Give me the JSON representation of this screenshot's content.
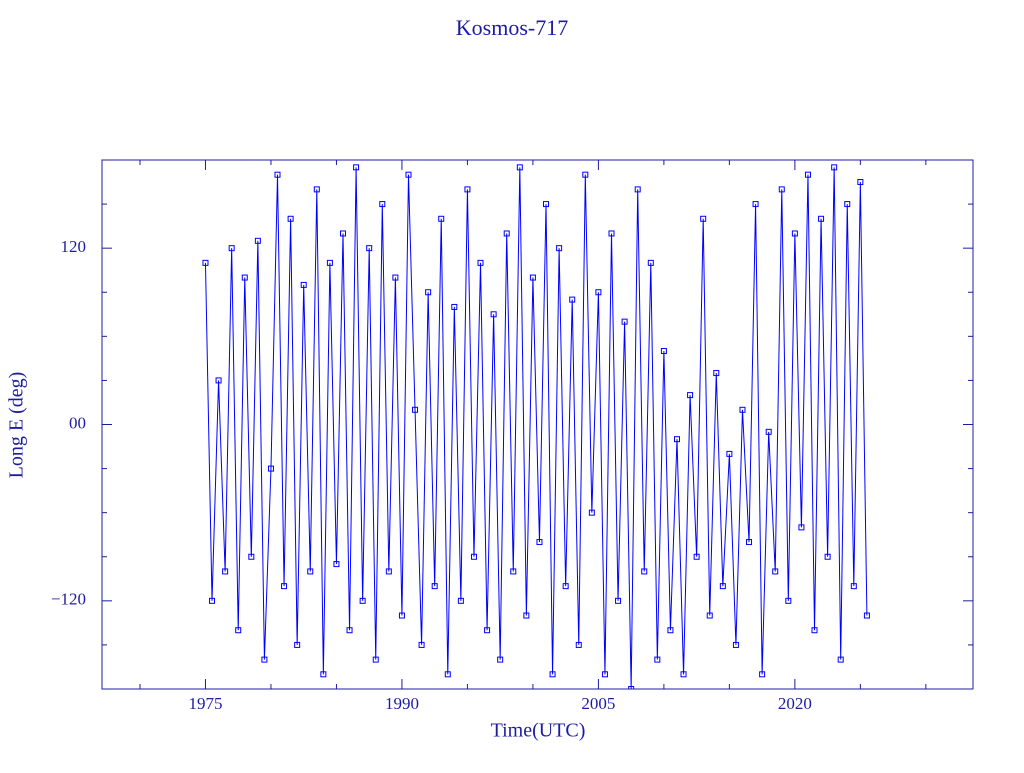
{
  "chart_data": {
    "type": "line",
    "title": "Kosmos-717",
    "x_label": "Time(UTC)",
    "y_label": "Long E (deg)",
    "xlim": [
      1967.1,
      2033.6
    ],
    "ylim": [
      -180,
      180
    ],
    "xticks": [
      1975,
      1990,
      2005,
      2020
    ],
    "xticks_minor": [
      1970,
      1980,
      1985,
      1995,
      2000,
      2010,
      2015,
      2025,
      2030
    ],
    "yticks": [
      {
        "value": -120,
        "label": "−120"
      },
      {
        "value": 0,
        "label": "00"
      },
      120
    ],
    "yticks_minor": [
      -150,
      -90,
      -60,
      -30,
      30,
      60,
      90,
      150
    ],
    "axis_color": "#1c1ca0",
    "markers": true,
    "series": [
      {
        "color": "#0000ff",
        "x": [
          1975.0,
          1975.5,
          1976.0,
          1976.5,
          1977.0,
          1977.5,
          1978.0,
          1978.5,
          1979.0,
          1979.5,
          1980.0,
          1980.5,
          1981.0,
          1981.5,
          1982.0,
          1982.5,
          1983.0,
          1983.5,
          1984.0,
          1984.5,
          1985.0,
          1985.5,
          1986.0,
          1986.5,
          1987.0,
          1987.5,
          1988.0,
          1988.5,
          1989.0,
          1989.5,
          1990.0,
          1990.5,
          1991.0,
          1991.5,
          1992.0,
          1992.5,
          1993.0,
          1993.5,
          1994.0,
          1994.5,
          1995.0,
          1995.5,
          1996.0,
          1996.5,
          1997.0,
          1997.5,
          1998.0,
          1998.5,
          1999.0,
          1999.5,
          2000.0,
          2000.5,
          2001.0,
          2001.5,
          2002.0,
          2002.5,
          2003.0,
          2003.5,
          2004.0,
          2004.5,
          2005.0,
          2005.5,
          2006.0,
          2006.5,
          2007.0,
          2007.5,
          2008.0,
          2008.5,
          2009.0,
          2009.5,
          2010.0,
          2010.5,
          2011.0,
          2011.5,
          2012.0,
          2012.5,
          2013.0,
          2013.5,
          2014.0,
          2014.5,
          2015.0,
          2015.5,
          2016.0,
          2016.5,
          2017.0,
          2017.5,
          2018.0,
          2018.5,
          2019.0,
          2019.5,
          2020.0,
          2020.5,
          2021.0,
          2021.5,
          2022.0,
          2022.5,
          2023.0,
          2023.5,
          2024.0,
          2024.5,
          2025.0,
          2025.5
        ],
        "values": [
          110,
          -120,
          30,
          -100,
          120,
          -140,
          100,
          -90,
          125,
          -160,
          -30,
          170,
          -110,
          140,
          -150,
          95,
          -100,
          160,
          -170,
          110,
          -95,
          130,
          -140,
          175,
          -120,
          120,
          -160,
          150,
          -100,
          100,
          -130,
          170,
          10,
          -150,
          90,
          -110,
          140,
          -170,
          80,
          -120,
          160,
          -90,
          110,
          -140,
          75,
          -160,
          130,
          -100,
          175,
          -130,
          100,
          -80,
          150,
          -170,
          120,
          -110,
          85,
          -150,
          170,
          -60,
          90,
          -170,
          130,
          -120,
          70,
          -180,
          160,
          -100,
          110,
          -160,
          50,
          -140,
          -10,
          -170,
          20,
          -90,
          140,
          -130,
          35,
          -110,
          -20,
          -150,
          10,
          -80,
          150,
          -170,
          -5,
          -100,
          160,
          -120,
          130,
          -70,
          170,
          -140,
          140,
          -90,
          175,
          -160,
          150,
          -110,
          165,
          -130
        ]
      }
    ]
  }
}
